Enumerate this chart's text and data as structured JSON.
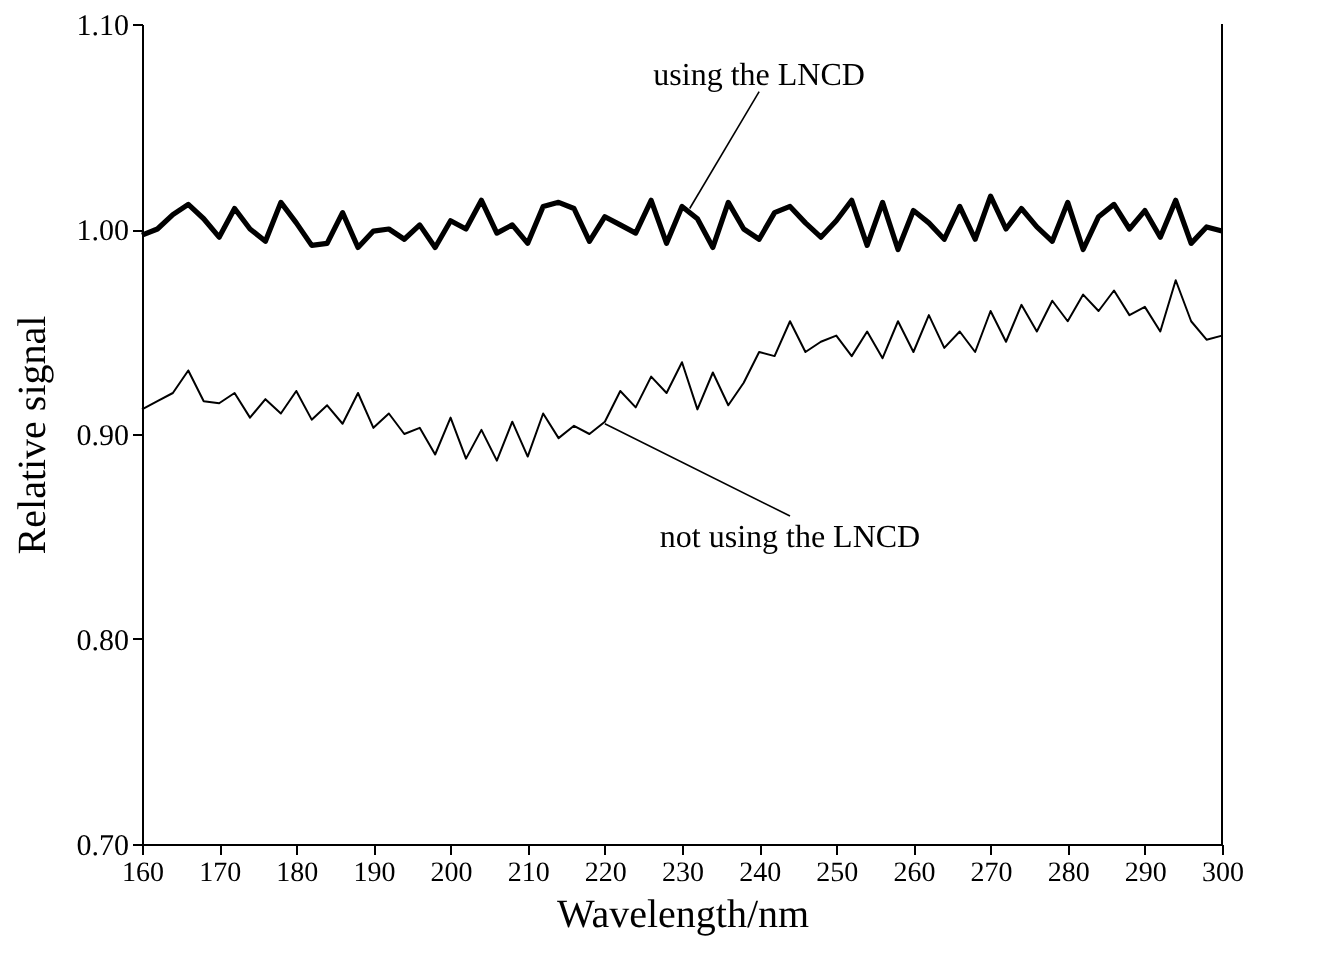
{
  "chart_data": {
    "type": "line",
    "xlabel": "Wavelength/nm",
    "ylabel": "Relative signal",
    "x": [
      160,
      162,
      164,
      166,
      168,
      170,
      172,
      174,
      176,
      178,
      180,
      182,
      184,
      186,
      188,
      190,
      192,
      194,
      196,
      198,
      200,
      202,
      204,
      206,
      208,
      210,
      212,
      214,
      216,
      218,
      220,
      222,
      224,
      226,
      228,
      230,
      232,
      234,
      236,
      238,
      240,
      242,
      244,
      246,
      248,
      250,
      252,
      254,
      256,
      258,
      260,
      262,
      264,
      266,
      268,
      270,
      272,
      274,
      276,
      278,
      280,
      282,
      284,
      286,
      288,
      290,
      292,
      294,
      296,
      298,
      300
    ],
    "series": [
      {
        "color": "#000000",
        "values": [
          0.997,
          1.0,
          1.007,
          1.012,
          1.005,
          0.996,
          1.01,
          1.0,
          0.994,
          1.013,
          1.003,
          0.992,
          0.993,
          1.008,
          0.991,
          0.999,
          1.0,
          0.995,
          1.002,
          0.991,
          1.004,
          1.0,
          1.014,
          0.998,
          1.002,
          0.993,
          1.011,
          1.013,
          1.01,
          0.994,
          1.006,
          1.002,
          0.998,
          1.014,
          0.993,
          1.011,
          1.005,
          0.991,
          1.013,
          1.0,
          0.995,
          1.008,
          1.011,
          1.003,
          0.996,
          1.004,
          1.014,
          0.992,
          1.013,
          0.99,
          1.009,
          1.003,
          0.995,
          1.011,
          0.995,
          1.016,
          1.0,
          1.01,
          1.001,
          0.994,
          1.013,
          0.99,
          1.006,
          1.012,
          1.0,
          1.009,
          0.996,
          1.014,
          0.993,
          1.001,
          0.999
        ]
      },
      {
        "color": "#000000",
        "values": [
          0.912,
          0.916,
          0.92,
          0.931,
          0.916,
          0.915,
          0.92,
          0.908,
          0.917,
          0.91,
          0.921,
          0.907,
          0.914,
          0.905,
          0.92,
          0.903,
          0.91,
          0.9,
          0.903,
          0.89,
          0.908,
          0.888,
          0.902,
          0.887,
          0.906,
          0.889,
          0.91,
          0.898,
          0.904,
          0.9,
          0.906,
          0.921,
          0.913,
          0.928,
          0.92,
          0.935,
          0.912,
          0.93,
          0.914,
          0.925,
          0.94,
          0.938,
          0.955,
          0.94,
          0.945,
          0.948,
          0.938,
          0.95,
          0.937,
          0.955,
          0.94,
          0.958,
          0.942,
          0.95,
          0.94,
          0.96,
          0.945,
          0.963,
          0.95,
          0.965,
          0.955,
          0.968,
          0.96,
          0.97,
          0.958,
          0.962,
          0.95,
          0.975,
          0.955,
          0.946,
          0.948
        ]
      }
    ],
    "xlim": [
      160,
      300
    ],
    "xticks": [
      160,
      170,
      180,
      190,
      200,
      210,
      220,
      230,
      240,
      250,
      260,
      270,
      280,
      290,
      300
    ],
    "ylim": [
      0.7,
      1.1
    ],
    "yticks": [
      {
        "value": 0.7,
        "label": "0.70"
      },
      {
        "value": 0.8,
        "label": "0.80"
      },
      {
        "value": 0.9,
        "label": "0.90"
      },
      {
        "value": 1.0,
        "label": "1.00"
      },
      {
        "value": 1.1,
        "label": "1.10"
      }
    ],
    "grid": false,
    "marker": "none",
    "line_style": "solid",
    "annotations": [
      {
        "text": "using the LNCD",
        "x": 231,
        "y": 1.01
      },
      {
        "text": "not using the  LNCD",
        "x": 220,
        "y": 0.905
      }
    ]
  }
}
